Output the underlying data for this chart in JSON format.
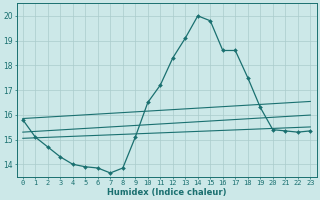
{
  "xlabel": "Humidex (Indice chaleur)",
  "background_color": "#cce8e8",
  "grid_color": "#aacccc",
  "line_color": "#1a7070",
  "xlim": [
    -0.5,
    23.5
  ],
  "ylim": [
    13.5,
    20.5
  ],
  "xticks": [
    0,
    1,
    2,
    3,
    4,
    5,
    6,
    7,
    8,
    9,
    10,
    11,
    12,
    13,
    14,
    15,
    16,
    17,
    18,
    19,
    20,
    21,
    22,
    23
  ],
  "yticks": [
    14,
    15,
    16,
    17,
    18,
    19,
    20
  ],
  "hours": [
    0,
    1,
    2,
    3,
    4,
    5,
    6,
    7,
    8,
    9,
    10,
    11,
    12,
    13,
    14,
    15,
    16,
    17,
    18,
    19,
    20,
    21,
    22,
    23
  ],
  "line_main": [
    15.8,
    15.1,
    14.7,
    14.3,
    14.0,
    13.9,
    13.85,
    13.65,
    13.85,
    15.1,
    16.5,
    17.2,
    18.3,
    19.1,
    20.0,
    19.8,
    18.6,
    18.6,
    17.5,
    16.3,
    15.4,
    15.35,
    15.3,
    15.35
  ],
  "line_reg1": [
    15.85,
    15.88,
    15.91,
    15.94,
    15.97,
    16.0,
    16.03,
    16.06,
    16.09,
    16.12,
    16.15,
    16.18,
    16.21,
    16.24,
    16.27,
    16.3,
    16.33,
    16.36,
    16.39,
    16.42,
    16.45,
    16.48,
    16.51,
    16.54
  ],
  "line_reg2": [
    15.3,
    15.33,
    15.36,
    15.39,
    15.42,
    15.45,
    15.48,
    15.51,
    15.54,
    15.57,
    15.6,
    15.63,
    15.66,
    15.69,
    15.72,
    15.75,
    15.78,
    15.81,
    15.84,
    15.87,
    15.9,
    15.93,
    15.96,
    15.99
  ],
  "line_reg3": [
    15.05,
    15.07,
    15.09,
    15.11,
    15.13,
    15.15,
    15.17,
    15.19,
    15.21,
    15.23,
    15.25,
    15.27,
    15.29,
    15.31,
    15.33,
    15.35,
    15.37,
    15.39,
    15.41,
    15.43,
    15.45,
    15.47,
    15.49,
    15.51
  ],
  "xlabel_fontsize": 6,
  "tick_fontsize": 5,
  "ytick_fontsize": 5.5
}
